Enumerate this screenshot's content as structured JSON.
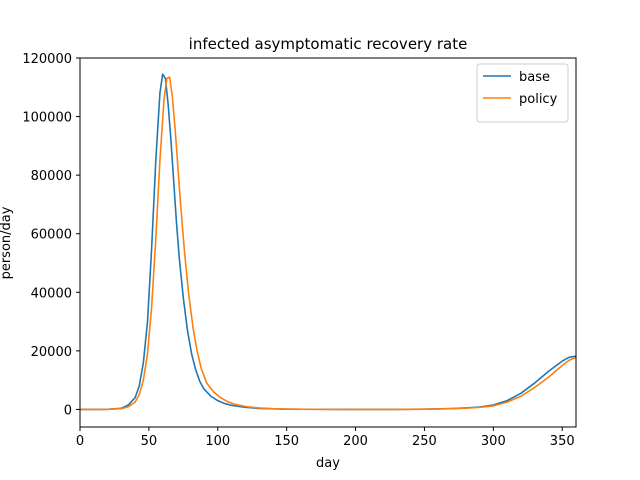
{
  "chart_data": {
    "type": "line",
    "title": "infected asymptomatic recovery rate",
    "xlabel": "day",
    "ylabel": "person/day",
    "xlim": [
      0,
      360
    ],
    "ylim": [
      -6000,
      120000
    ],
    "xticks": [
      0,
      50,
      100,
      150,
      200,
      250,
      300,
      350
    ],
    "yticks": [
      0,
      20000,
      40000,
      60000,
      80000,
      100000,
      120000
    ],
    "grid": false,
    "legend_position": "top-right",
    "series": [
      {
        "name": "base",
        "color": "#1f77b4",
        "x": [
          0,
          10,
          20,
          30,
          35,
          40,
          43,
          46,
          49,
          52,
          55,
          58,
          60,
          62,
          64,
          66,
          68,
          70,
          72,
          75,
          78,
          81,
          84,
          87,
          90,
          95,
          100,
          105,
          110,
          120,
          130,
          140,
          150,
          175,
          200,
          225,
          250,
          270,
          280,
          290,
          300,
          310,
          320,
          330,
          340,
          350,
          355,
          360
        ],
        "y": [
          0,
          0,
          50,
          400,
          1500,
          4000,
          8000,
          16000,
          30000,
          55000,
          85000,
          108000,
          114500,
          113000,
          104000,
          92000,
          78000,
          64000,
          52000,
          38000,
          27000,
          19000,
          13500,
          9500,
          7000,
          4500,
          3000,
          2000,
          1400,
          700,
          350,
          200,
          100,
          20,
          0,
          0,
          100,
          300,
          500,
          800,
          1500,
          3000,
          5500,
          9000,
          13000,
          16500,
          17800,
          18200
        ]
      },
      {
        "name": "policy",
        "color": "#ff7f0e",
        "x": [
          0,
          10,
          20,
          30,
          35,
          40,
          43,
          46,
          49,
          52,
          55,
          58,
          61,
          63,
          65,
          67,
          69,
          71,
          73,
          76,
          79,
          82,
          85,
          88,
          92,
          97,
          102,
          107,
          112,
          120,
          130,
          140,
          150,
          175,
          200,
          225,
          250,
          270,
          280,
          290,
          300,
          310,
          320,
          330,
          340,
          350,
          355,
          360
        ],
        "y": [
          0,
          0,
          30,
          250,
          900,
          2500,
          5000,
          10000,
          19000,
          35000,
          58000,
          85000,
          106000,
          113000,
          113500,
          107000,
          96000,
          83000,
          70000,
          53000,
          39000,
          28000,
          20000,
          14000,
          9000,
          6000,
          4000,
          2700,
          1800,
          1000,
          500,
          250,
          120,
          20,
          0,
          0,
          80,
          250,
          400,
          700,
          1200,
          2500,
          4500,
          7500,
          11000,
          15000,
          16800,
          17800
        ]
      }
    ]
  }
}
